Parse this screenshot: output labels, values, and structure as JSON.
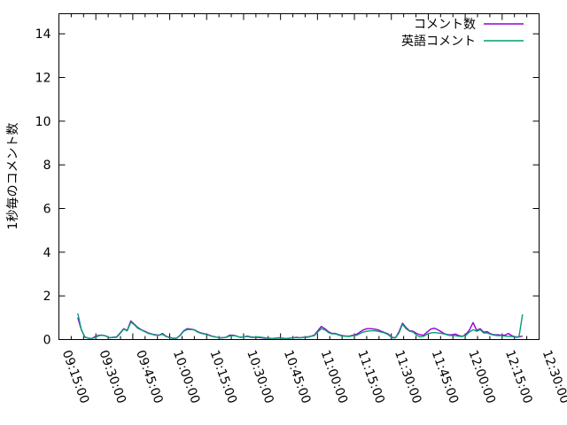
{
  "chart_data": {
    "type": "line",
    "title": "",
    "xlabel": "",
    "ylabel": "1秒毎のコメント数",
    "grid": false,
    "legend_position": "top-right-inside",
    "ylim": [
      0,
      14.92
    ],
    "y_ticks": [
      0,
      2,
      4,
      6,
      8,
      10,
      12,
      14
    ],
    "x_tick_labels": [
      "09:15:00",
      "09:30:00",
      "09:45:00",
      "10:00:00",
      "10:15:00",
      "10:30:00",
      "10:45:00",
      "11:00:00",
      "11:15:00",
      "11:30:00",
      "11:45:00",
      "12:00:00",
      "12:15:00",
      "12:30:00"
    ],
    "x_minor_tick_minutes": 5,
    "x_range": [
      "09:15:00",
      "12:30:00"
    ],
    "x": [
      "09:22:40",
      "09:24:06",
      "09:25:32",
      "09:26:58",
      "09:28:24",
      "09:29:50",
      "09:31:16",
      "09:32:42",
      "09:34:08",
      "09:35:34",
      "09:37:00",
      "09:38:26",
      "09:39:52",
      "09:41:18",
      "09:42:44",
      "09:44:10",
      "09:45:36",
      "09:47:02",
      "09:48:28",
      "09:49:54",
      "09:51:20",
      "09:52:46",
      "09:54:12",
      "09:55:38",
      "09:57:04",
      "09:58:30",
      "09:59:56",
      "10:01:22",
      "10:02:48",
      "10:04:14",
      "10:05:40",
      "10:07:06",
      "10:08:32",
      "10:09:58",
      "10:11:24",
      "10:12:50",
      "10:14:16",
      "10:15:42",
      "10:17:08",
      "10:18:34",
      "10:20:00",
      "10:21:26",
      "10:22:52",
      "10:24:18",
      "10:25:44",
      "10:27:10",
      "10:28:36",
      "10:30:02",
      "10:31:28",
      "10:32:54",
      "10:34:20",
      "10:35:46",
      "10:37:12",
      "10:38:38",
      "10:40:04",
      "10:41:30",
      "10:42:56",
      "10:44:22",
      "10:45:48",
      "10:47:14",
      "10:48:40",
      "10:50:06",
      "10:51:32",
      "10:52:58",
      "10:54:24",
      "10:55:50",
      "10:57:16",
      "10:58:42",
      "11:00:08",
      "11:01:34",
      "11:03:00",
      "11:04:26",
      "11:05:52",
      "11:07:18",
      "11:08:44",
      "11:10:10",
      "11:11:36",
      "11:13:02",
      "11:14:28",
      "11:15:54",
      "11:17:20",
      "11:18:46",
      "11:20:12",
      "11:21:38",
      "11:23:04",
      "11:24:30",
      "11:25:56",
      "11:27:22",
      "11:28:48",
      "11:30:14",
      "11:31:40",
      "11:33:06",
      "11:34:32",
      "11:35:58",
      "11:37:24",
      "11:38:50",
      "11:40:16",
      "11:41:42",
      "11:43:08",
      "11:44:34",
      "11:46:00",
      "11:47:26",
      "11:48:52",
      "11:50:18",
      "11:51:44",
      "11:53:10",
      "11:54:36",
      "11:56:02",
      "11:57:28",
      "11:58:54",
      "12:00:20",
      "12:01:46",
      "12:03:12",
      "12:04:38",
      "12:06:04",
      "12:07:30",
      "12:08:56",
      "12:10:22",
      "12:11:48",
      "12:13:14",
      "12:14:40",
      "12:16:06",
      "12:17:32",
      "12:18:58",
      "12:20:24",
      "12:21:50",
      "12:23:16"
    ],
    "series": [
      {
        "name": "コメント数",
        "color": "#9400d3",
        "values": [
          1.0,
          0.45,
          0.12,
          0.06,
          0.05,
          0.14,
          0.2,
          0.2,
          0.16,
          0.08,
          0.1,
          0.12,
          0.3,
          0.5,
          0.42,
          0.85,
          0.7,
          0.55,
          0.45,
          0.38,
          0.3,
          0.25,
          0.22,
          0.2,
          0.28,
          0.15,
          0.1,
          0.06,
          0.06,
          0.2,
          0.4,
          0.5,
          0.48,
          0.45,
          0.36,
          0.3,
          0.26,
          0.22,
          0.16,
          0.12,
          0.08,
          0.08,
          0.1,
          0.2,
          0.2,
          0.16,
          0.1,
          0.12,
          0.16,
          0.12,
          0.1,
          0.1,
          0.08,
          0.06,
          0.06,
          0.05,
          0.06,
          0.08,
          0.06,
          0.05,
          0.06,
          0.08,
          0.1,
          0.08,
          0.1,
          0.12,
          0.15,
          0.2,
          0.4,
          0.6,
          0.5,
          0.36,
          0.28,
          0.28,
          0.22,
          0.18,
          0.16,
          0.16,
          0.2,
          0.24,
          0.35,
          0.45,
          0.5,
          0.5,
          0.48,
          0.45,
          0.38,
          0.32,
          0.25,
          0.1,
          0.08,
          0.35,
          0.75,
          0.55,
          0.4,
          0.38,
          0.28,
          0.22,
          0.2,
          0.35,
          0.48,
          0.52,
          0.45,
          0.35,
          0.26,
          0.22,
          0.22,
          0.25,
          0.18,
          0.15,
          0.24,
          0.45,
          0.78,
          0.42,
          0.5,
          0.34,
          0.36,
          0.26,
          0.22,
          0.22,
          0.2,
          0.2,
          0.28,
          0.18,
          0.12,
          0.12,
          0.16
        ]
      },
      {
        "name": "英語コメント",
        "color": "#009e73",
        "values": [
          1.2,
          0.45,
          0.1,
          0.06,
          0.05,
          0.1,
          0.18,
          0.2,
          0.16,
          0.08,
          0.1,
          0.1,
          0.28,
          0.48,
          0.4,
          0.8,
          0.68,
          0.52,
          0.44,
          0.36,
          0.28,
          0.24,
          0.2,
          0.2,
          0.24,
          0.14,
          0.08,
          0.05,
          0.06,
          0.18,
          0.38,
          0.46,
          0.46,
          0.44,
          0.34,
          0.28,
          0.25,
          0.2,
          0.15,
          0.12,
          0.08,
          0.08,
          0.1,
          0.16,
          0.18,
          0.16,
          0.1,
          0.12,
          0.14,
          0.1,
          0.1,
          0.12,
          0.1,
          0.08,
          0.06,
          0.05,
          0.06,
          0.06,
          0.06,
          0.05,
          0.06,
          0.08,
          0.08,
          0.08,
          0.1,
          0.1,
          0.14,
          0.18,
          0.35,
          0.5,
          0.45,
          0.32,
          0.26,
          0.26,
          0.2,
          0.16,
          0.15,
          0.14,
          0.18,
          0.2,
          0.28,
          0.35,
          0.38,
          0.4,
          0.4,
          0.38,
          0.34,
          0.3,
          0.22,
          0.08,
          0.08,
          0.3,
          0.7,
          0.5,
          0.38,
          0.35,
          0.2,
          0.12,
          0.15,
          0.25,
          0.3,
          0.32,
          0.3,
          0.28,
          0.25,
          0.2,
          0.18,
          0.18,
          0.15,
          0.14,
          0.2,
          0.35,
          0.45,
          0.38,
          0.45,
          0.3,
          0.3,
          0.24,
          0.2,
          0.18,
          0.18,
          0.16,
          0.15,
          0.14,
          0.1,
          0.12,
          1.15
        ]
      }
    ],
    "colors": {
      "axis": "#000000",
      "text": "#000000",
      "background": "#ffffff"
    }
  }
}
